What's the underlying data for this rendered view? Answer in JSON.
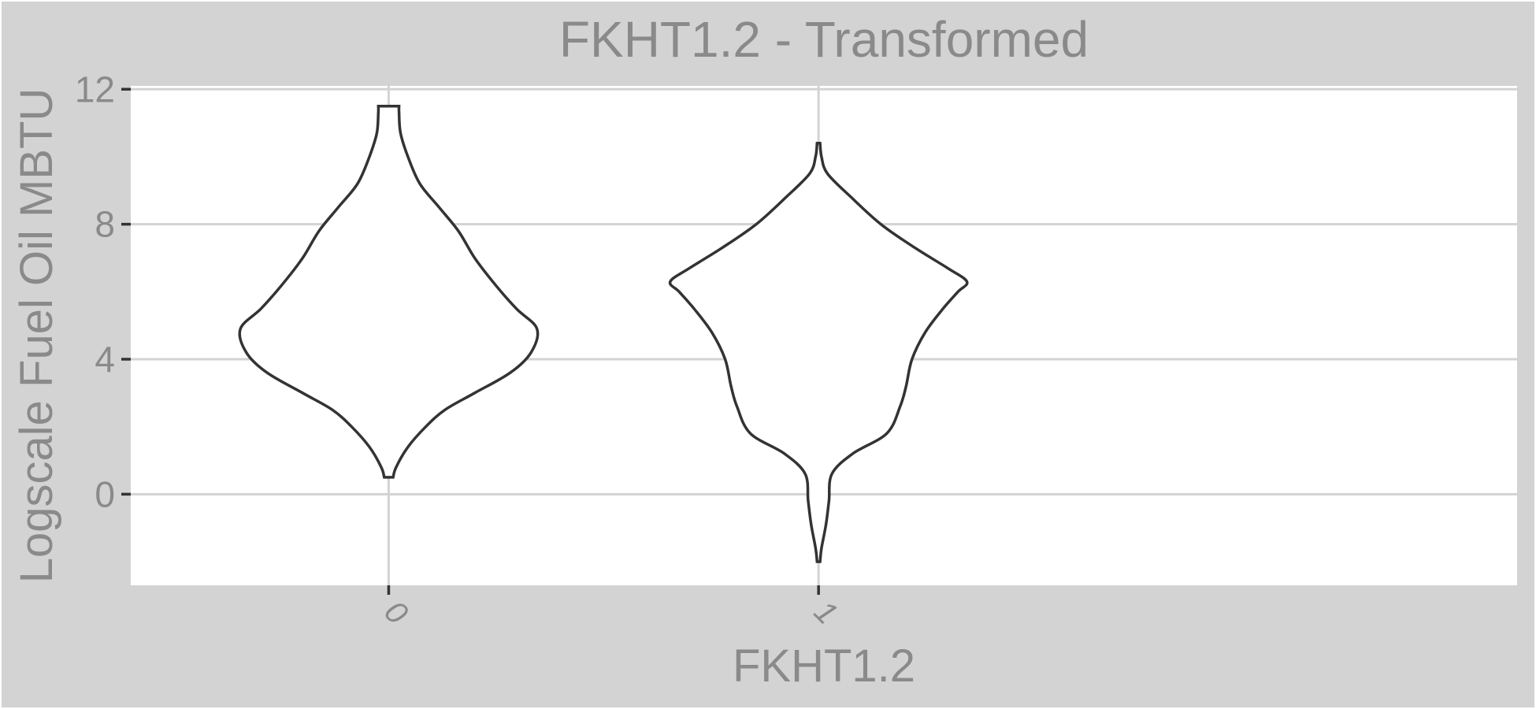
{
  "chart_data": {
    "type": "violin",
    "title": "FKHT1.2 - Transformed",
    "xlabel": "FKHT1.2",
    "ylabel": "Logscale Fuel Oil MBTU",
    "categories": [
      "0",
      "1"
    ],
    "ylim": [
      -2.7,
      12.1
    ],
    "yticks": [
      0,
      4,
      8,
      12
    ],
    "ytick_labels": [
      "0",
      "4",
      "8",
      "12"
    ],
    "grid": true,
    "colors": {
      "panel_bg": "#ffffff",
      "outer_bg": "#d3d3d3",
      "outline": "#333333",
      "grid": "#d3d3d3",
      "text": "#8a8a8a"
    },
    "series": [
      {
        "category": "0",
        "min": 0.5,
        "max": 11.5,
        "density_profile": [
          [
            0.5,
            0.03
          ],
          [
            0.8,
            0.05
          ],
          [
            1.4,
            0.13
          ],
          [
            2.0,
            0.25
          ],
          [
            2.5,
            0.38
          ],
          [
            3.0,
            0.58
          ],
          [
            3.6,
            0.82
          ],
          [
            4.2,
            0.96
          ],
          [
            4.9,
            1.0
          ],
          [
            5.5,
            0.86
          ],
          [
            6.2,
            0.72
          ],
          [
            7.0,
            0.58
          ],
          [
            7.8,
            0.47
          ],
          [
            8.5,
            0.34
          ],
          [
            9.2,
            0.21
          ],
          [
            10.0,
            0.13
          ],
          [
            10.7,
            0.08
          ],
          [
            11.3,
            0.07
          ],
          [
            11.5,
            0.07
          ]
        ]
      },
      {
        "category": "1",
        "min": -2.0,
        "max": 10.4,
        "density_profile": [
          [
            -2.0,
            0.01
          ],
          [
            -1.6,
            0.02
          ],
          [
            -0.9,
            0.05
          ],
          [
            -0.2,
            0.07
          ],
          [
            0.6,
            0.09
          ],
          [
            1.2,
            0.23
          ],
          [
            1.8,
            0.46
          ],
          [
            2.6,
            0.55
          ],
          [
            3.2,
            0.59
          ],
          [
            4.0,
            0.63
          ],
          [
            4.8,
            0.72
          ],
          [
            5.5,
            0.84
          ],
          [
            6.0,
            0.94
          ],
          [
            6.3,
            1.0
          ],
          [
            6.7,
            0.87
          ],
          [
            7.3,
            0.65
          ],
          [
            8.0,
            0.42
          ],
          [
            8.8,
            0.22
          ],
          [
            9.5,
            0.06
          ],
          [
            10.0,
            0.02
          ],
          [
            10.4,
            0.01
          ]
        ]
      }
    ]
  }
}
